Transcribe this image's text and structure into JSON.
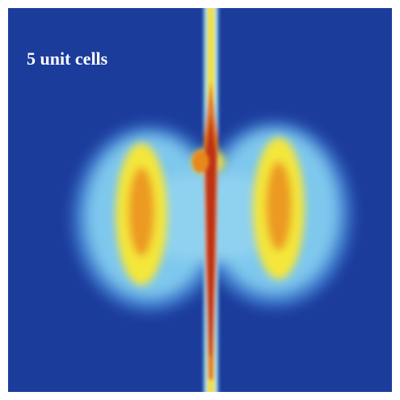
{
  "label": "5 unit cells"
}
